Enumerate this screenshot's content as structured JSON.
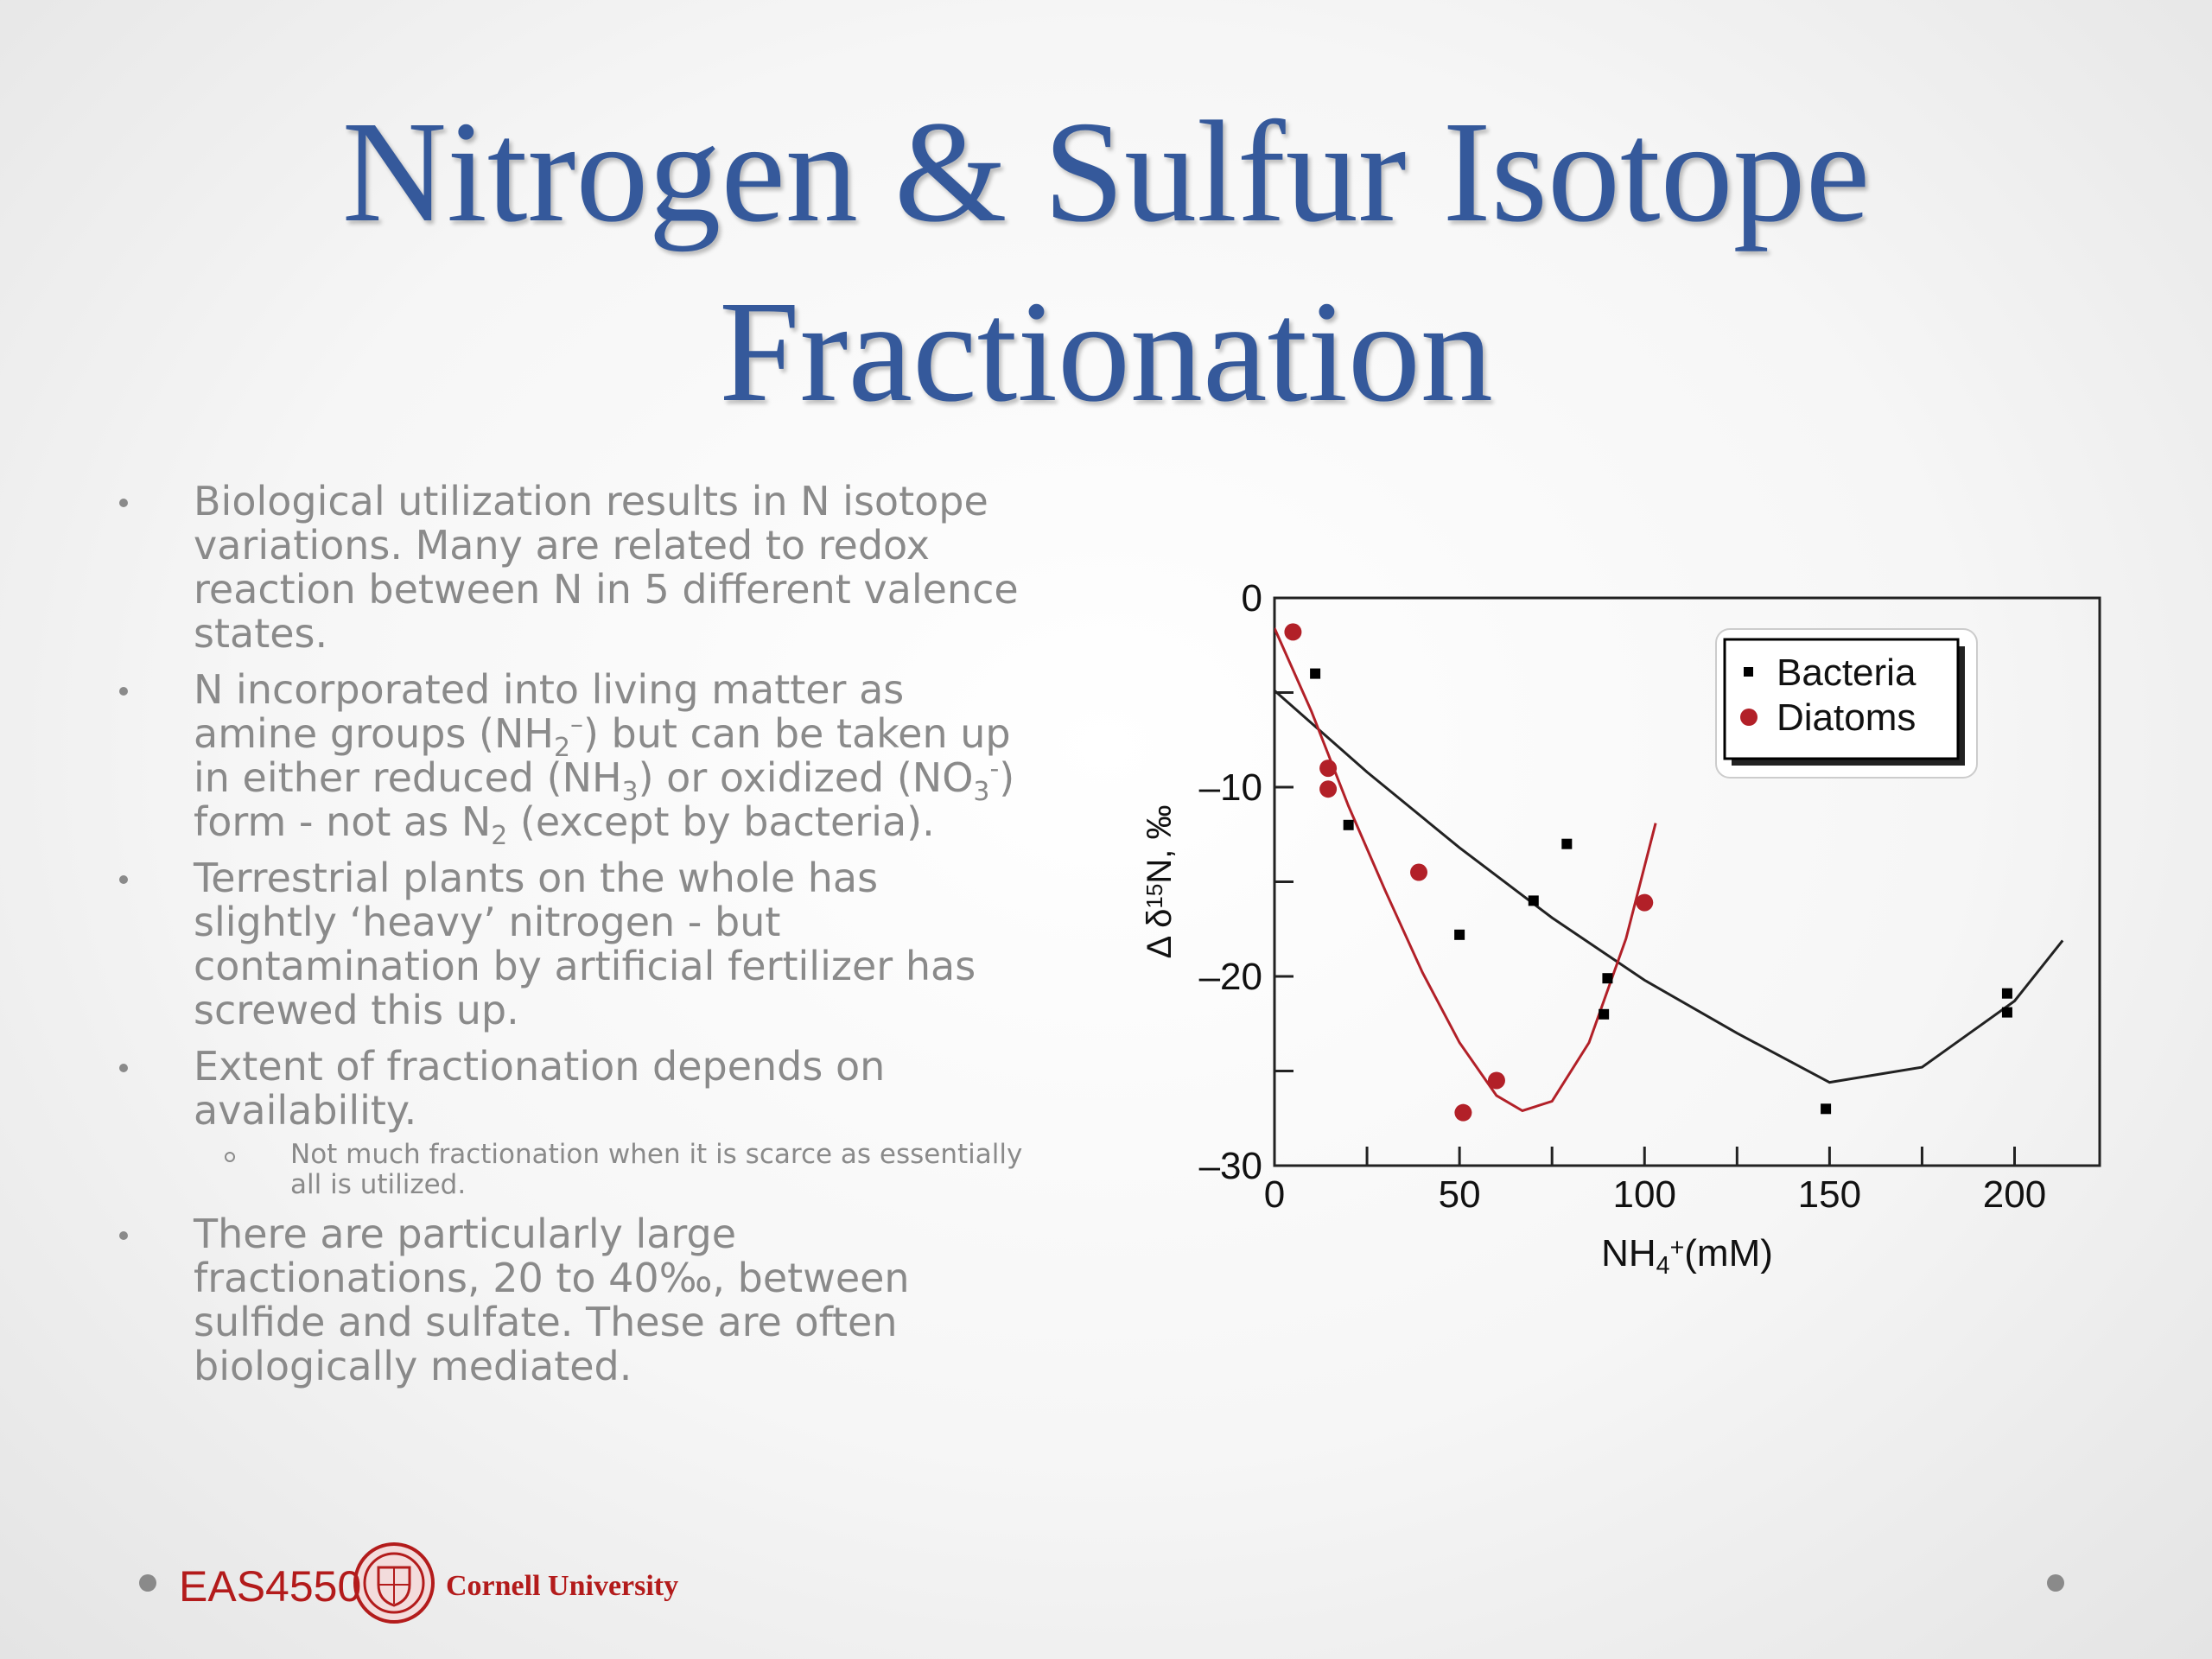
{
  "title": [
    "Nitrogen & Sulfur Isotope",
    "Fractionation"
  ],
  "bullets": [
    {
      "runs": [
        "Biological utilization results in N isotope variations. Many are related to redox reaction between N in 5 different valence states."
      ]
    },
    {
      "runs": [
        "N incorporated into living matter as amine groups (NH",
        {
          "sub": "2"
        },
        {
          "sup": "–"
        },
        ") but can be taken up in either reduced (NH",
        {
          "sub": "3"
        },
        ") or oxidized (NO",
        {
          "sub": "3"
        },
        {
          "sup": "-"
        },
        ") form - not as N",
        {
          "sub": "2"
        },
        " (except by bacteria)."
      ]
    },
    {
      "runs": [
        "Terrestrial plants on the whole has slightly ‘heavy’ nitrogen - but contamination by artificial fertilizer has screwed this up."
      ]
    },
    {
      "runs": [
        "Extent of fractionation depends on availability."
      ],
      "subitems": [
        {
          "runs": [
            "Not much fractionation when it is scarce as essentially all is utilized."
          ]
        }
      ]
    },
    {
      "runs": [
        "There are particularly large fractionations, 20 to 40‰, between sulfide and sulfate. These are often biologically mediated."
      ]
    }
  ],
  "chart_data": {
    "type": "scatter",
    "xlabel": [
      "NH",
      {
        "sub": "4"
      },
      {
        "sup": "+"
      },
      "(mM)"
    ],
    "ylabel": [
      "Δ δ",
      {
        "sup": "15"
      },
      "N, ‰"
    ],
    "xlim": [
      0,
      223
    ],
    "ylim": [
      -30,
      0
    ],
    "xticks": [
      0,
      50,
      100,
      150,
      200
    ],
    "xticks_minor": [
      25,
      75,
      125,
      175
    ],
    "yticks": [
      0,
      {
        "value": -10,
        "label": "–10"
      },
      {
        "value": -20,
        "label": "–20"
      },
      {
        "value": -30,
        "label": "–30"
      }
    ],
    "yticks_minor": [
      -5,
      -15,
      -25
    ],
    "grid": false,
    "legend": "upper right",
    "series": [
      {
        "name": "Bacteria",
        "color": "#000000",
        "marker": "square",
        "x": [
          11,
          20,
          50,
          70,
          79,
          90,
          89,
          149,
          198,
          198
        ],
        "values": [
          -4.0,
          -12.0,
          -17.8,
          -16.0,
          -13.0,
          -20.1,
          -22.0,
          -27.0,
          -20.9,
          -21.9
        ]
      },
      {
        "name": "Diatoms",
        "color": "#b22028",
        "marker": "circle",
        "x": [
          5,
          14.5,
          14.5,
          39,
          51,
          60,
          100
        ],
        "values": [
          -1.8,
          -9.0,
          -10.1,
          -14.5,
          -27.2,
          -25.5,
          -16.1
        ]
      }
    ],
    "fits": [
      {
        "color": "#222222",
        "x": [
          0,
          25,
          50,
          75,
          100,
          125,
          150,
          175,
          200,
          213
        ],
        "values": [
          -4.9,
          -9.2,
          -13.2,
          -16.9,
          -20.2,
          -23.0,
          -25.6,
          -24.8,
          -21.3,
          -18.1
        ]
      },
      {
        "color": "#b22028",
        "x": [
          0,
          10,
          20,
          30,
          40,
          50,
          60,
          67,
          75,
          85,
          95,
          103
        ],
        "values": [
          -1.6,
          -6.0,
          -11.0,
          -15.5,
          -19.8,
          -23.5,
          -26.3,
          -27.1,
          -26.6,
          -23.5,
          -18.0,
          -11.9
        ]
      }
    ]
  },
  "footer": {
    "course": "EAS4550",
    "university": "Cornell University"
  }
}
